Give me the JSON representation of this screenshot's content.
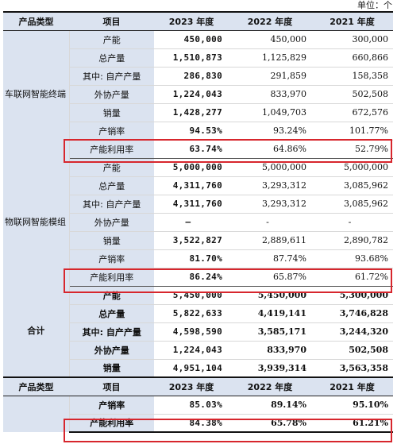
{
  "unit_label": "单位：个",
  "header": {
    "category": "产品类型",
    "item": "项目",
    "y2023": "2023 年度",
    "y2022": "2022 年度",
    "y2021": "2021 年度"
  },
  "groups": [
    {
      "category": "车联网智能终端",
      "rows": [
        {
          "item": "产能",
          "y2023": "450,000",
          "y2022": "450,000",
          "y2021": "300,000"
        },
        {
          "item": "总产量",
          "y2023": "1,510,873",
          "y2022": "1,125,829",
          "y2021": "660,866"
        },
        {
          "item": "其中: 自产产量",
          "y2023": "286,830",
          "y2022": "291,859",
          "y2021": "158,358"
        },
        {
          "item": "外协产量",
          "y2023": "1,224,043",
          "y2022": "833,970",
          "y2021": "502,508"
        },
        {
          "item": "销量",
          "y2023": "1,428,277",
          "y2022": "1,049,703",
          "y2021": "672,576"
        },
        {
          "item": "产销率",
          "y2023": "94.53%",
          "y2022": "93.24%",
          "y2021": "101.77%"
        },
        {
          "item": "产能利用率",
          "y2023": "63.74%",
          "y2022": "64.86%",
          "y2021": "52.79%"
        }
      ]
    },
    {
      "category": "物联网智能模组",
      "rows": [
        {
          "item": "产能",
          "y2023": "5,000,000",
          "y2022": "5,000,000",
          "y2021": "5,000,000"
        },
        {
          "item": "总产量",
          "y2023": "4,311,760",
          "y2022": "3,293,312",
          "y2021": "3,085,962"
        },
        {
          "item": "其中: 自产产量",
          "y2023": "4,311,760",
          "y2022": "3,293,312",
          "y2021": "3,085,962"
        },
        {
          "item": "外协产量",
          "y2023": "–",
          "y2022": "-",
          "y2021": "-"
        },
        {
          "item": "销量",
          "y2023": "3,522,827",
          "y2022": "2,889,611",
          "y2021": "2,890,782"
        },
        {
          "item": "产销率",
          "y2023": "81.70%",
          "y2022": "87.74%",
          "y2021": "93.68%"
        },
        {
          "item": "产能利用率",
          "y2023": "86.24%",
          "y2022": "65.87%",
          "y2021": "61.72%"
        }
      ]
    },
    {
      "category": "合计",
      "rows": [
        {
          "item": "产能",
          "y2023": "5,450,000",
          "y2022": "5,450,000",
          "y2021": "5,300,000"
        },
        {
          "item": "总产量",
          "y2023": "5,822,633",
          "y2022": "4,419,141",
          "y2021": "3,746,828"
        },
        {
          "item": "其中: 自产产量",
          "y2023": "4,598,590",
          "y2022": "3,585,171",
          "y2021": "3,244,320"
        },
        {
          "item": "外协产量",
          "y2023": "1,224,043",
          "y2022": "833,970",
          "y2021": "502,508"
        },
        {
          "item": "销量",
          "y2023": "4,951,104",
          "y2022": "3,939,314",
          "y2021": "3,563,358"
        }
      ]
    }
  ],
  "summary": {
    "header": {
      "category": "产品类型",
      "item": "项目",
      "y2023": "2023 年度",
      "y2022": "2022 年度",
      "y2021": "2021 年度"
    },
    "rows": [
      {
        "item": "产销率",
        "y2023": "85.03%",
        "y2022": "89.14%",
        "y2021": "95.10%"
      },
      {
        "item": "产能利用率",
        "y2023": "84.38%",
        "y2022": "65.78%",
        "y2021": "61.21%"
      }
    ]
  },
  "highlight_color": "#d7262d"
}
